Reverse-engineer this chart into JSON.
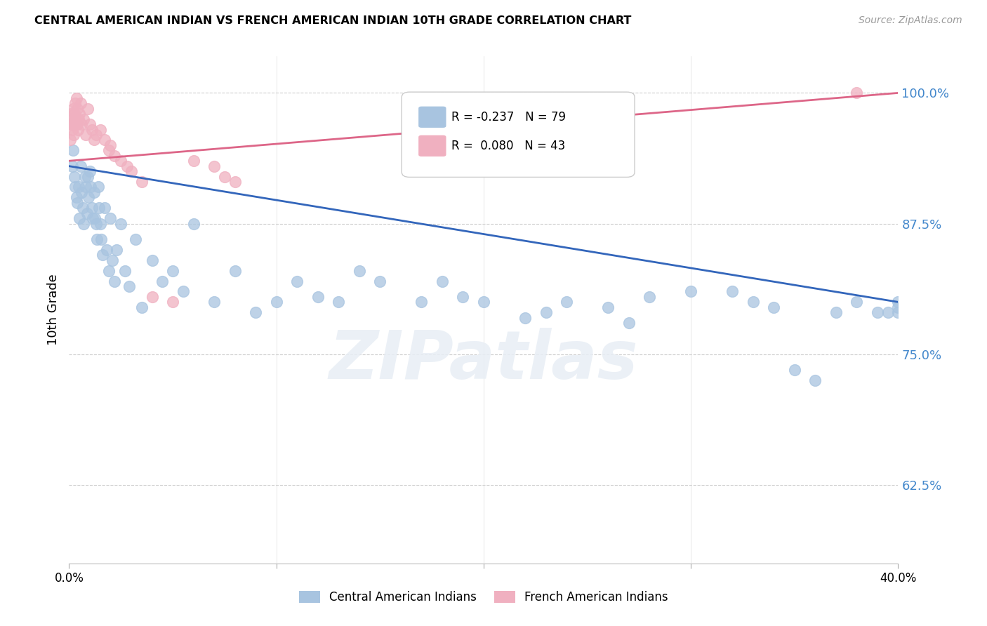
{
  "title": "CENTRAL AMERICAN INDIAN VS FRENCH AMERICAN INDIAN 10TH GRADE CORRELATION CHART",
  "source": "Source: ZipAtlas.com",
  "ylabel": "10th Grade",
  "yticks": [
    62.5,
    75.0,
    87.5,
    100.0
  ],
  "xmin": 0.0,
  "xmax": 40.0,
  "ymin": 55.0,
  "ymax": 103.5,
  "blue_color": "#A8C4E0",
  "pink_color": "#F0B0C0",
  "blue_line_color": "#3366BB",
  "pink_line_color": "#DD6688",
  "legend_R_blue": "R = -0.237",
  "legend_N_blue": "N = 79",
  "legend_R_pink": "R =  0.080",
  "legend_N_pink": "N = 43",
  "legend_label_blue": "Central American Indians",
  "legend_label_pink": "French American Indians",
  "watermark": "ZIPatlas",
  "blue_x": [
    0.15,
    0.2,
    0.25,
    0.3,
    0.35,
    0.4,
    0.45,
    0.5,
    0.55,
    0.6,
    0.65,
    0.7,
    0.75,
    0.8,
    0.85,
    0.9,
    0.95,
    1.0,
    1.05,
    1.1,
    1.15,
    1.2,
    1.25,
    1.3,
    1.35,
    1.4,
    1.45,
    1.5,
    1.55,
    1.6,
    1.7,
    1.8,
    1.9,
    2.0,
    2.1,
    2.2,
    2.3,
    2.5,
    2.7,
    2.9,
    3.2,
    3.5,
    4.0,
    4.5,
    5.0,
    5.5,
    6.0,
    7.0,
    8.0,
    9.0,
    10.0,
    11.0,
    12.0,
    13.0,
    14.0,
    15.0,
    17.0,
    18.0,
    19.0,
    20.0,
    22.0,
    23.0,
    24.0,
    26.0,
    27.0,
    28.0,
    30.0,
    32.0,
    33.0,
    34.0,
    35.0,
    36.0,
    37.0,
    38.0,
    39.0,
    39.5,
    40.0,
    40.0,
    40.0
  ],
  "blue_y": [
    93.0,
    94.5,
    92.0,
    91.0,
    90.0,
    89.5,
    91.0,
    88.0,
    93.0,
    90.5,
    89.0,
    87.5,
    92.0,
    91.0,
    88.5,
    92.0,
    90.0,
    92.5,
    91.0,
    89.0,
    88.0,
    90.5,
    88.0,
    87.5,
    86.0,
    91.0,
    89.0,
    87.5,
    86.0,
    84.5,
    89.0,
    85.0,
    83.0,
    88.0,
    84.0,
    82.0,
    85.0,
    87.5,
    83.0,
    81.5,
    86.0,
    79.5,
    84.0,
    82.0,
    83.0,
    81.0,
    87.5,
    80.0,
    83.0,
    79.0,
    80.0,
    82.0,
    80.5,
    80.0,
    83.0,
    82.0,
    80.0,
    82.0,
    80.5,
    80.0,
    78.5,
    79.0,
    80.0,
    79.5,
    78.0,
    80.5,
    81.0,
    81.0,
    80.0,
    79.5,
    73.5,
    72.5,
    79.0,
    80.0,
    79.0,
    79.0,
    79.0,
    80.0,
    79.5
  ],
  "pink_x": [
    0.05,
    0.08,
    0.1,
    0.12,
    0.15,
    0.18,
    0.2,
    0.22,
    0.25,
    0.28,
    0.3,
    0.32,
    0.35,
    0.38,
    0.4,
    0.42,
    0.45,
    0.5,
    0.55,
    0.6,
    0.7,
    0.8,
    0.9,
    1.0,
    1.1,
    1.2,
    1.3,
    1.5,
    1.7,
    1.9,
    2.0,
    2.2,
    2.5,
    2.8,
    3.0,
    3.5,
    4.0,
    5.0,
    6.0,
    7.0,
    7.5,
    8.0,
    38.0
  ],
  "pink_y": [
    95.5,
    97.0,
    98.0,
    97.5,
    96.5,
    98.5,
    97.0,
    96.0,
    98.0,
    97.5,
    99.0,
    97.0,
    99.5,
    97.0,
    98.5,
    96.5,
    97.5,
    98.0,
    99.0,
    97.0,
    97.5,
    96.0,
    98.5,
    97.0,
    96.5,
    95.5,
    96.0,
    96.5,
    95.5,
    94.5,
    95.0,
    94.0,
    93.5,
    93.0,
    92.5,
    91.5,
    80.5,
    80.0,
    93.5,
    93.0,
    92.0,
    91.5,
    100.0
  ]
}
